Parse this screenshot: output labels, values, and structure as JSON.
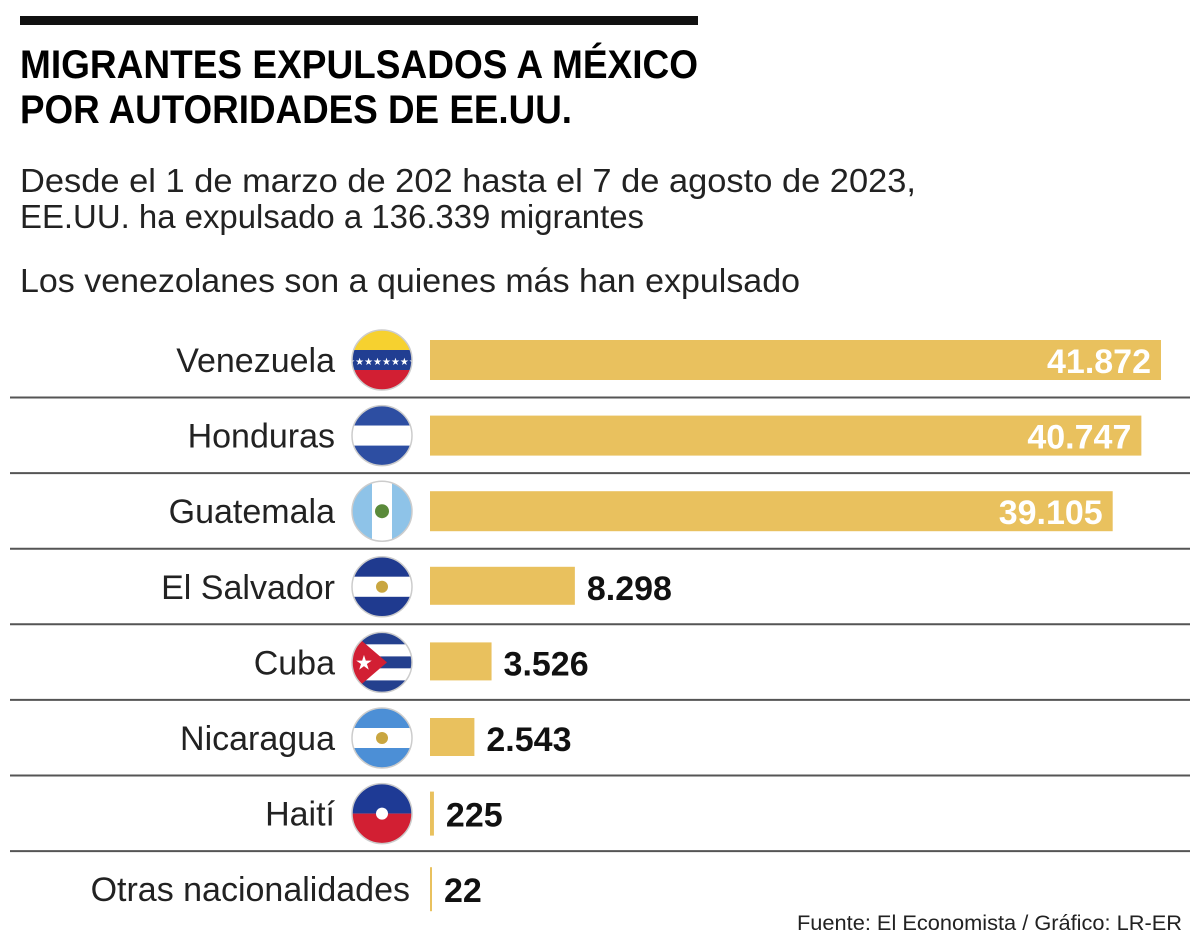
{
  "title_lines": [
    "MIGRANTES EXPULSADOS A MÉXICO",
    "POR AUTORIDADES DE EE.UU."
  ],
  "subtitle_lines": [
    "Desde el 1 de marzo de 202 hasta el 7 de agosto de 2023,",
    "EE.UU. ha expulsado a 136.339 migrantes"
  ],
  "highlight": "Los venezolanes son a quienes más han expulsado",
  "source": "Fuente: El Economista / Gráfico: LR-ER",
  "colors": {
    "bar": "#E9C15E",
    "text": "#111111",
    "divider": "#555555"
  },
  "chart_data": {
    "type": "bar",
    "orientation": "horizontal",
    "categories": [
      "Venezuela",
      "Honduras",
      "Guatemala",
      "El Salvador",
      "Cuba",
      "Nicaragua",
      "Haití",
      "Otras nacionalidades"
    ],
    "values": [
      41872,
      40747,
      39105,
      8298,
      3526,
      2543,
      225,
      22
    ],
    "value_labels": [
      "41.872",
      "40.747",
      "39.105",
      "8.298",
      "3.526",
      "2.543",
      "225",
      "22"
    ],
    "flags": [
      "venezuela-flag-icon",
      "honduras-flag-icon",
      "guatemala-flag-icon",
      "el-salvador-flag-icon",
      "cuba-flag-icon",
      "nicaragua-flag-icon",
      "haiti-flag-icon",
      ""
    ],
    "grid": false
  }
}
